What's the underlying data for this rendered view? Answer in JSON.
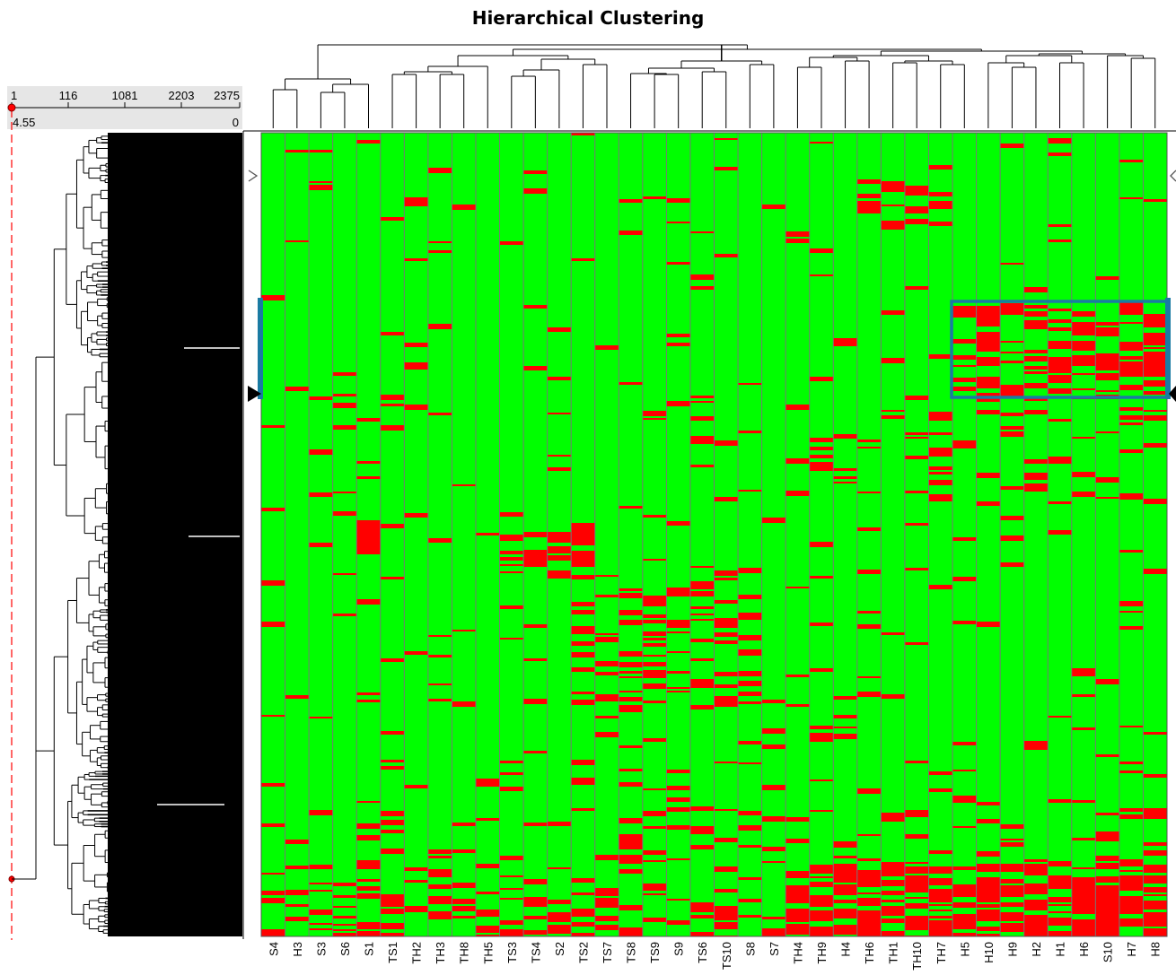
{
  "chart_data": {
    "type": "heatmap",
    "title": "Hierarchical Clustering",
    "colors": {
      "low": "#00ff00",
      "high": "#ff0000",
      "grid": "#777777",
      "selection": "#1a7ba3"
    },
    "scale": {
      "ticks": [
        "1",
        "116",
        "1081",
        "2203",
        "2375"
      ],
      "distance_max": "4.55",
      "distance_min": "0"
    },
    "samples": [
      "S4",
      "H3",
      "S3",
      "S6",
      "S1",
      "TS1",
      "TH2",
      "TH3",
      "TH8",
      "TH5",
      "TS3",
      "TS4",
      "S2",
      "TS2",
      "TS7",
      "TS8",
      "TS9",
      "S9",
      "TS6",
      "TS10",
      "S8",
      "S7",
      "TH4",
      "TH9",
      "H4",
      "TH6",
      "TH1",
      "TH10",
      "TH7",
      "H5",
      "H10",
      "H9",
      "H2",
      "H1",
      "H6",
      "S10",
      "H7",
      "H8"
    ],
    "selection": {
      "first_sample": "H5",
      "last_sample": "H8"
    }
  }
}
